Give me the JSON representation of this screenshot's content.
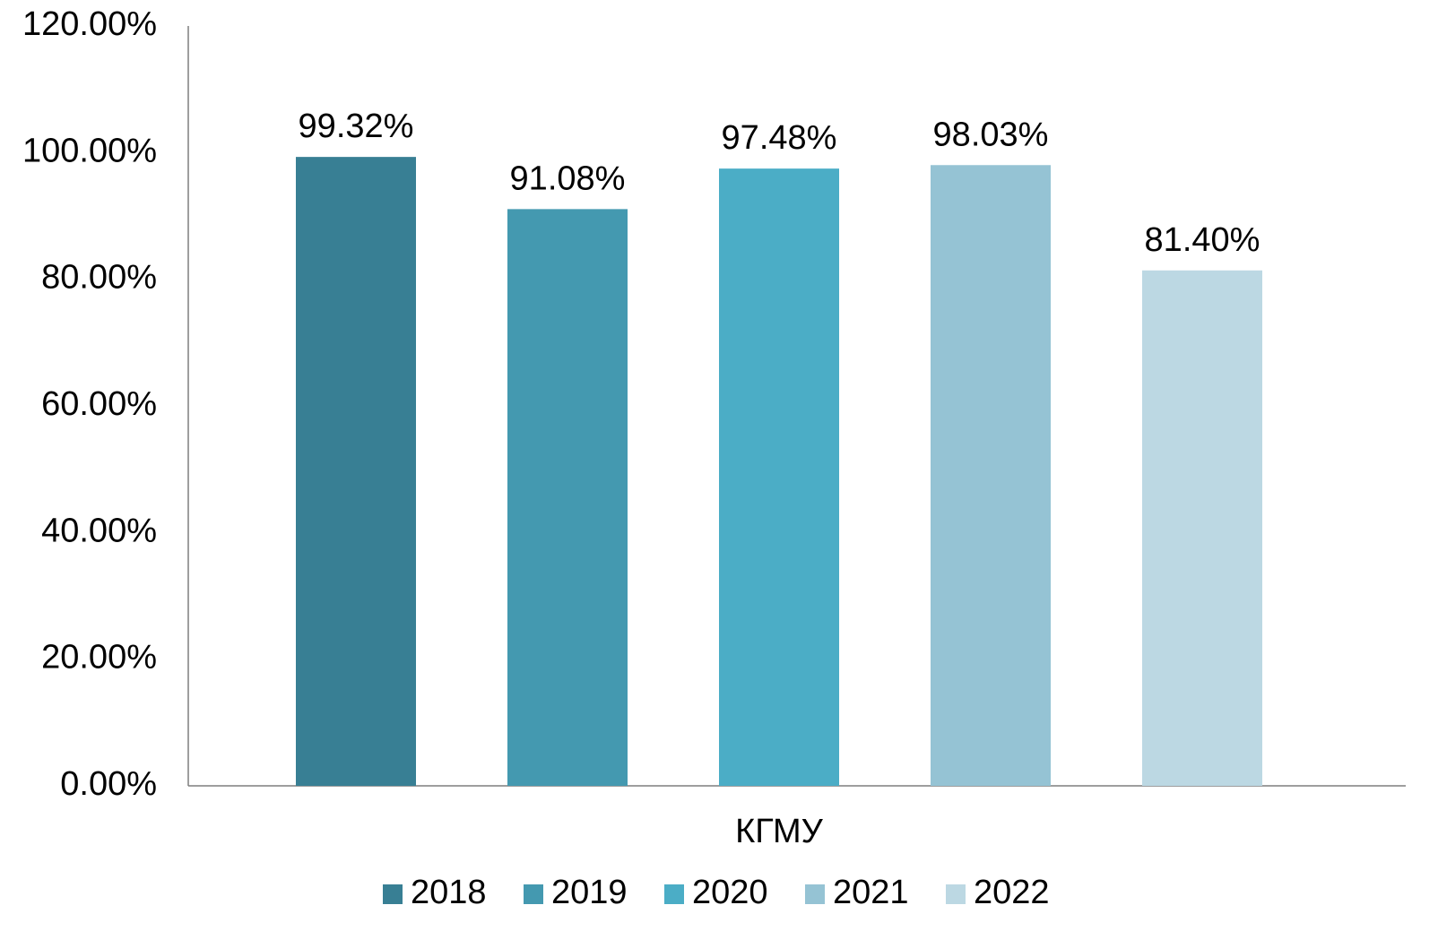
{
  "chart_data": {
    "type": "bar",
    "categories": [
      "КГМУ"
    ],
    "series": [
      {
        "name": "2018",
        "color": "#387f94",
        "values": [
          99.32
        ],
        "value_labels": [
          "99.32%"
        ]
      },
      {
        "name": "2019",
        "color": "#4499b0",
        "values": [
          91.08
        ],
        "value_labels": [
          "91.08%"
        ]
      },
      {
        "name": "2020",
        "color": "#4badc6",
        "values": [
          97.48
        ],
        "value_labels": [
          "97.48%"
        ]
      },
      {
        "name": "2021",
        "color": "#95c3d4",
        "values": [
          98.03
        ],
        "value_labels": [
          "98.03%"
        ]
      },
      {
        "name": "2022",
        "color": "#bcd8e3",
        "values": [
          81.4
        ],
        "value_labels": [
          "81.40%"
        ]
      }
    ],
    "ylim": [
      0,
      120
    ],
    "yticks": [
      {
        "value": 0,
        "label": "0.00%"
      },
      {
        "value": 20,
        "label": "20.00%"
      },
      {
        "value": 40,
        "label": "40.00%"
      },
      {
        "value": 60,
        "label": "60.00%"
      },
      {
        "value": 80,
        "label": "80.00%"
      },
      {
        "value": 100,
        "label": "100.00%"
      },
      {
        "value": 120,
        "label": "120.00%"
      }
    ],
    "grid": false,
    "legend": "bottom"
  }
}
